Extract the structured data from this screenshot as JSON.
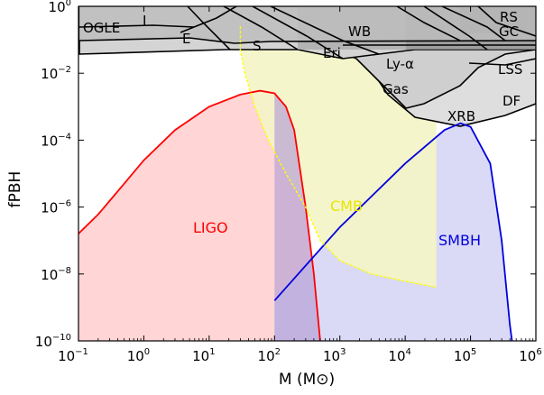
{
  "chart_data": {
    "type": "area",
    "x_axis": {
      "label": "M (M⊙)",
      "scale": "log",
      "range": [
        0.1,
        1000000
      ],
      "ticks": [
        {
          "value": 0.1,
          "base": "10",
          "exp": "−1"
        },
        {
          "value": 1,
          "base": "10",
          "exp": "0"
        },
        {
          "value": 10,
          "base": "10",
          "exp": "1"
        },
        {
          "value": 100,
          "base": "10",
          "exp": "2"
        },
        {
          "value": 1000,
          "base": "10",
          "exp": "3"
        },
        {
          "value": 10000,
          "base": "10",
          "exp": "4"
        },
        {
          "value": 100000,
          "base": "10",
          "exp": "5"
        },
        {
          "value": 1000000,
          "base": "10",
          "exp": "6"
        }
      ]
    },
    "y_axis": {
      "label": "fPBH",
      "scale": "log",
      "range": [
        1e-10,
        1
      ],
      "ticks": [
        {
          "value": 1e-10,
          "base": "10",
          "exp": "−10"
        },
        {
          "value": 1e-08,
          "base": "10",
          "exp": "−8"
        },
        {
          "value": 1e-06,
          "base": "10",
          "exp": "−6"
        },
        {
          "value": 0.0001,
          "base": "10",
          "exp": "−4"
        },
        {
          "value": 0.01,
          "base": "10",
          "exp": "−2"
        },
        {
          "value": 1,
          "base": "10",
          "exp": "0"
        }
      ]
    },
    "series": [
      {
        "name": "LIGO",
        "color": "#ff0000",
        "fill": "#ffd3d3",
        "points": [
          [
            0.1,
            1.6e-07
          ],
          [
            0.2,
            6e-07
          ],
          [
            0.5,
            5e-06
          ],
          [
            1,
            2.5e-05
          ],
          [
            3,
            0.0002
          ],
          [
            10,
            0.001
          ],
          [
            30,
            0.0023
          ],
          [
            60,
            0.003
          ],
          [
            100,
            0.0025
          ],
          [
            150,
            0.001
          ],
          [
            200,
            0.0002
          ],
          [
            300,
            1e-06
          ],
          [
            400,
            1e-08
          ],
          [
            500,
            1e-10
          ]
        ]
      },
      {
        "name": "SMBH",
        "color": "#0000dd",
        "fill": "#d8d8f6",
        "points": [
          [
            100,
            1.6e-09
          ],
          [
            1000,
            2.5e-07
          ],
          [
            10000,
            2e-05
          ],
          [
            40000,
            0.0002
          ],
          [
            70000,
            0.00032
          ],
          [
            100000,
            0.00025
          ],
          [
            200000,
            2e-05
          ],
          [
            300000,
            1e-07
          ],
          [
            400000,
            3e-10
          ],
          [
            430000,
            1e-10
          ]
        ]
      },
      {
        "name": "CMB",
        "color": "#ffff00",
        "fill": "#f4f4c6",
        "points": [
          [
            30,
            0.25
          ],
          [
            30,
            0.05
          ],
          [
            35,
            0.01
          ],
          [
            50,
            0.001
          ],
          [
            80,
            0.0001
          ],
          [
            150,
            1e-05
          ],
          [
            300,
            1e-06
          ],
          [
            500,
            1e-07
          ],
          [
            1000,
            2.5e-08
          ],
          [
            3000,
            1e-08
          ],
          [
            10000,
            6e-09
          ],
          [
            30000,
            4e-09
          ]
        ]
      }
    ],
    "constraint_labels": [
      "OGLE",
      "I",
      "E",
      "S",
      "Eri",
      "WB",
      "Ly-α",
      "Gas",
      "XRB",
      "RS",
      "GC",
      "LSS",
      "DF"
    ]
  }
}
